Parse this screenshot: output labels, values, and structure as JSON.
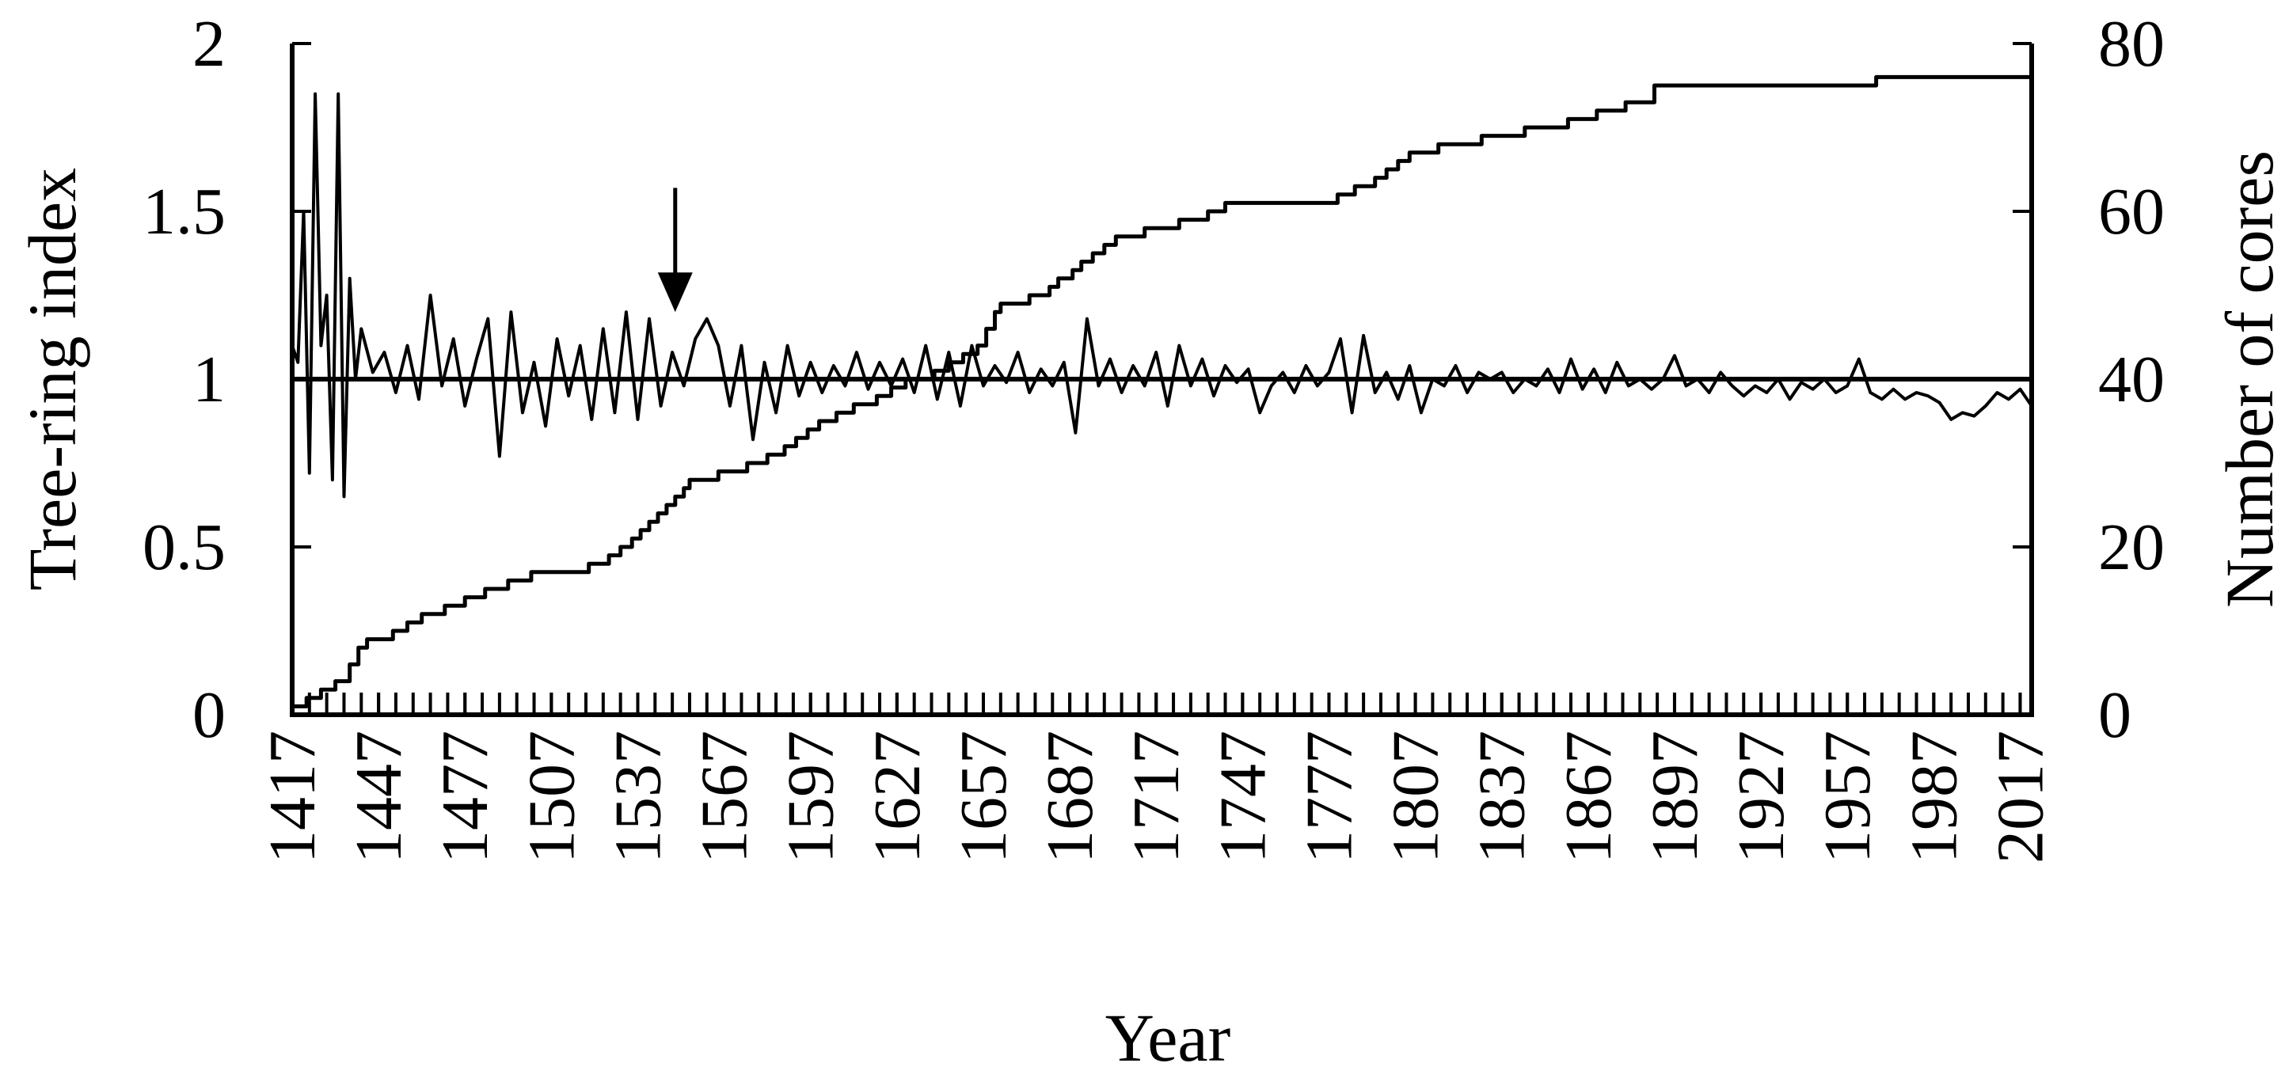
{
  "chart_data": {
    "type": "line",
    "xlabel": "Year",
    "ylabel": "Tree-ring index",
    "y2label": "Number of cores",
    "xlim": [
      1417,
      2021
    ],
    "xticks": [
      1417,
      1447,
      1477,
      1507,
      1537,
      1567,
      1597,
      1627,
      1657,
      1687,
      1717,
      1747,
      1777,
      1807,
      1837,
      1867,
      1897,
      1927,
      1957,
      1987,
      2017
    ],
    "xminorticks": [
      1417,
      1423,
      1429,
      1435,
      1441,
      1447,
      1453,
      1459,
      1465,
      1471,
      1477,
      1483,
      1489,
      1495,
      1501,
      1507,
      1513,
      1519,
      1525,
      1531,
      1537,
      1543,
      1549,
      1555,
      1561,
      1567,
      1573,
      1579,
      1585,
      1591,
      1597,
      1603,
      1609,
      1615,
      1621,
      1627,
      1633,
      1639,
      1645,
      1651,
      1657,
      1663,
      1669,
      1675,
      1681,
      1687,
      1693,
      1699,
      1705,
      1711,
      1717,
      1723,
      1729,
      1735,
      1741,
      1747,
      1753,
      1759,
      1765,
      1771,
      1777,
      1783,
      1789,
      1795,
      1801,
      1807,
      1813,
      1819,
      1825,
      1831,
      1837,
      1843,
      1849,
      1855,
      1861,
      1867,
      1873,
      1879,
      1885,
      1891,
      1897,
      1903,
      1909,
      1915,
      1921,
      1927,
      1933,
      1939,
      1945,
      1951,
      1957,
      1963,
      1969,
      1975,
      1981,
      1987,
      1993,
      1999,
      2005,
      2011,
      2017
    ],
    "ylim": [
      0,
      2
    ],
    "yticks": [
      0,
      0.5,
      1,
      1.5,
      2
    ],
    "y2lim": [
      0,
      80
    ],
    "y2ticks": [
      0,
      20,
      40,
      60,
      80
    ],
    "reference_line": 1,
    "arrow": {
      "x": 1550,
      "y_start": 1.57,
      "y_end": 1.2
    },
    "series": [
      {
        "color": "#000000",
        "x": [
          1417,
          1419,
          1421,
          1423,
          1425,
          1427,
          1429,
          1431,
          1433,
          1435,
          1437,
          1439,
          1441,
          1445,
          1449,
          1453,
          1457,
          1461,
          1465,
          1469,
          1473,
          1477,
          1481,
          1485,
          1489,
          1493,
          1497,
          1501,
          1505,
          1509,
          1513,
          1517,
          1521,
          1525,
          1529,
          1533,
          1537,
          1541,
          1545,
          1549,
          1553,
          1557,
          1561,
          1565,
          1569,
          1573,
          1577,
          1581,
          1585,
          1589,
          1593,
          1597,
          1601,
          1605,
          1609,
          1613,
          1617,
          1621,
          1625,
          1629,
          1633,
          1637,
          1641,
          1645,
          1649,
          1653,
          1657,
          1661,
          1665,
          1669,
          1673,
          1677,
          1681,
          1685,
          1689,
          1693,
          1697,
          1701,
          1705,
          1709,
          1713,
          1717,
          1721,
          1725,
          1729,
          1733,
          1737,
          1741,
          1745,
          1749,
          1753,
          1757,
          1761,
          1765,
          1769,
          1773,
          1777,
          1781,
          1785,
          1789,
          1793,
          1797,
          1801,
          1805,
          1809,
          1813,
          1817,
          1821,
          1825,
          1829,
          1833,
          1837,
          1841,
          1845,
          1849,
          1853,
          1857,
          1861,
          1865,
          1869,
          1873,
          1877,
          1881,
          1885,
          1889,
          1893,
          1897,
          1901,
          1905,
          1909,
          1913,
          1917,
          1921,
          1925,
          1929,
          1933,
          1937,
          1941,
          1945,
          1949,
          1953,
          1957,
          1961,
          1965,
          1969,
          1973,
          1977,
          1981,
          1985,
          1989,
          1993,
          1997,
          2001,
          2005,
          2009,
          2013,
          2017,
          2021
        ],
        "values": [
          1.1,
          1.05,
          1.5,
          0.72,
          1.85,
          1.1,
          1.25,
          0.7,
          1.85,
          0.65,
          1.3,
          1.0,
          1.15,
          1.02,
          1.08,
          0.96,
          1.1,
          0.94,
          1.25,
          0.98,
          1.12,
          0.92,
          1.06,
          1.18,
          0.77,
          1.2,
          0.9,
          1.05,
          0.86,
          1.12,
          0.95,
          1.1,
          0.88,
          1.15,
          0.9,
          1.2,
          0.88,
          1.18,
          0.92,
          1.08,
          0.98,
          1.12,
          1.18,
          1.1,
          0.92,
          1.1,
          0.82,
          1.05,
          0.9,
          1.1,
          0.95,
          1.05,
          0.96,
          1.04,
          0.98,
          1.08,
          0.97,
          1.05,
          0.98,
          1.06,
          0.96,
          1.1,
          0.94,
          1.08,
          0.92,
          1.1,
          0.98,
          1.04,
          0.99,
          1.08,
          0.96,
          1.03,
          0.98,
          1.05,
          0.84,
          1.18,
          0.98,
          1.06,
          0.96,
          1.04,
          0.98,
          1.08,
          0.92,
          1.1,
          0.98,
          1.06,
          0.95,
          1.04,
          0.99,
          1.03,
          0.9,
          0.98,
          1.02,
          0.96,
          1.04,
          0.98,
          1.02,
          1.12,
          0.9,
          1.13,
          0.96,
          1.02,
          0.94,
          1.04,
          0.9,
          1.0,
          0.98,
          1.04,
          0.96,
          1.02,
          1.0,
          1.02,
          0.96,
          1.0,
          0.98,
          1.03,
          0.96,
          1.06,
          0.97,
          1.03,
          0.96,
          1.05,
          0.98,
          1.0,
          0.97,
          1.0,
          1.07,
          0.98,
          1.0,
          0.96,
          1.02,
          0.98,
          0.95,
          0.98,
          0.96,
          1.0,
          0.94,
          0.99,
          0.97,
          1.0,
          0.96,
          0.98,
          1.06,
          0.96,
          0.94,
          0.97,
          0.94,
          0.96,
          0.95,
          0.93,
          0.88,
          0.9,
          0.89,
          0.92,
          0.96,
          0.94,
          0.97,
          0.92
        ]
      },
      {
        "color": "#000000",
        "axis": "y2",
        "step": true,
        "x": [
          1417,
          1422,
          1427,
          1432,
          1437,
          1440,
          1443,
          1452,
          1457,
          1462,
          1470,
          1477,
          1484,
          1492,
          1500,
          1520,
          1527,
          1531,
          1535,
          1538,
          1541,
          1544,
          1547,
          1550,
          1553,
          1555,
          1565,
          1575,
          1582,
          1588,
          1592,
          1596,
          1600,
          1606,
          1612,
          1620,
          1625,
          1630,
          1640,
          1645,
          1650,
          1655,
          1658,
          1661,
          1663,
          1673,
          1680,
          1683,
          1688,
          1691,
          1695,
          1699,
          1703,
          1713,
          1725,
          1735,
          1741,
          1780,
          1786,
          1793,
          1797,
          1801,
          1805,
          1815,
          1830,
          1845,
          1860,
          1870,
          1880,
          1890,
          1967,
          2021
        ],
        "values": [
          1,
          2,
          3,
          4,
          6,
          8,
          9,
          10,
          11,
          12,
          13,
          14,
          15,
          16,
          17,
          18,
          19,
          20,
          21,
          22,
          23,
          24,
          25,
          26,
          27,
          28,
          29,
          30,
          31,
          32,
          33,
          34,
          35,
          36,
          37,
          38,
          39,
          40,
          41,
          42,
          43,
          44,
          46,
          48,
          49,
          50,
          51,
          52,
          53,
          54,
          55,
          56,
          57,
          58,
          59,
          60,
          61,
          62,
          63,
          64,
          65,
          66,
          67,
          68,
          69,
          70,
          71,
          72,
          73,
          75,
          76,
          76
        ]
      }
    ]
  }
}
